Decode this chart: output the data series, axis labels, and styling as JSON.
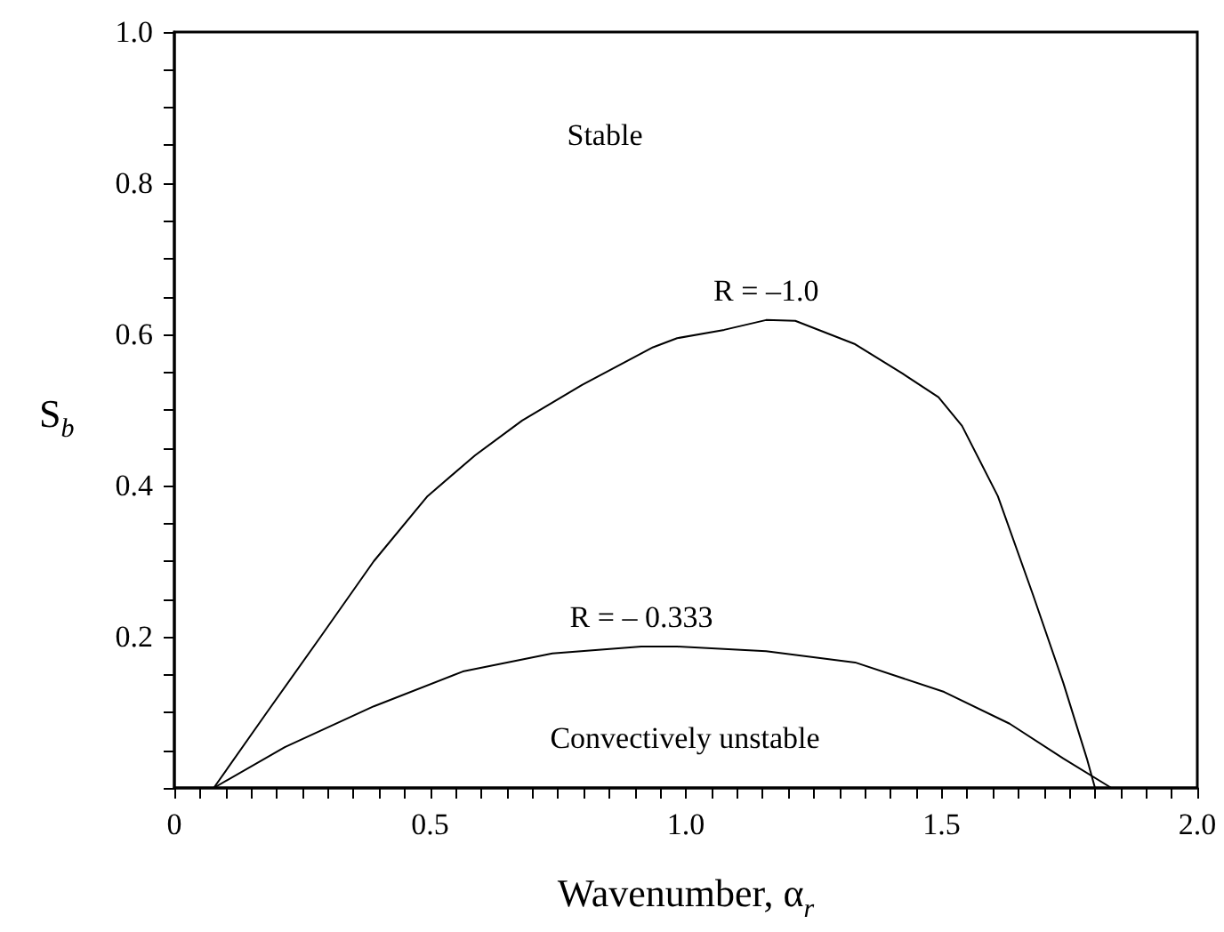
{
  "chart_data": {
    "type": "line",
    "xlabel": "Wavenumber, α$_{r}$",
    "ylabel": "S$_{b}$",
    "series": [
      {
        "name": "R = –1.0",
        "color": "#000000",
        "x": [
          0.077,
          0.181,
          0.286,
          0.39,
          0.495,
          0.588,
          0.68,
          0.797,
          0.936,
          0.983,
          1.075,
          1.157,
          1.214,
          1.331,
          1.424,
          1.494,
          1.54,
          1.61,
          1.679,
          1.738,
          1.784,
          1.8
        ],
        "values": [
          0,
          0.1,
          0.2,
          0.3,
          0.386,
          0.44,
          0.486,
          0.533,
          0.583,
          0.595,
          0.606,
          0.619,
          0.618,
          0.587,
          0.548,
          0.517,
          0.479,
          0.386,
          0.255,
          0.139,
          0.039,
          0
        ]
      },
      {
        "name": "R = – 0.333",
        "color": "#000000",
        "x": [
          0.077,
          0.216,
          0.39,
          0.564,
          0.739,
          0.913,
          0.983,
          1.157,
          1.331,
          1.505,
          1.633,
          1.738,
          1.832
        ],
        "values": [
          0,
          0.054,
          0.108,
          0.154,
          0.178,
          0.187,
          0.187,
          0.181,
          0.166,
          0.127,
          0.085,
          0.039,
          0
        ]
      }
    ],
    "xlim": [
      0,
      2
    ],
    "xticks": [
      0,
      {
        "value": 0.5,
        "label": "0.5"
      },
      {
        "value": 1,
        "label": "1.0"
      },
      {
        "value": 1.5,
        "label": "1.5"
      },
      {
        "value": 2,
        "label": "2.0"
      }
    ],
    "ylim": [
      0,
      1
    ],
    "yticks": [
      {
        "value": 0,
        "label": null
      },
      {
        "value": 0.2,
        "label": "0.2"
      },
      {
        "value": 0.4,
        "label": "0.4"
      },
      {
        "value": 0.6,
        "label": "0.6"
      },
      {
        "value": 0.8,
        "label": "0.8"
      },
      {
        "value": 1,
        "label": "1.0"
      }
    ],
    "annotations": [
      "Stable",
      "Convectively unstable"
    ],
    "marker": "none",
    "line_style": "solid",
    "grid": false,
    "legend": false
  }
}
